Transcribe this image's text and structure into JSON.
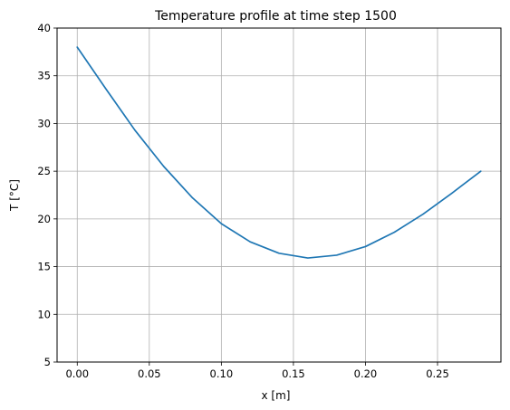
{
  "chart_data": {
    "type": "line",
    "title": "Temperature profile at time step 1500",
    "xlabel": "x [m]",
    "ylabel": "T [°C]",
    "xlim": [
      -0.014,
      0.294
    ],
    "ylim": [
      5,
      40
    ],
    "xticks": [
      0.0,
      0.05,
      0.1,
      0.15,
      0.2,
      0.25
    ],
    "xtick_labels": [
      "0.00",
      "0.05",
      "0.10",
      "0.15",
      "0.20",
      "0.25"
    ],
    "yticks": [
      5,
      10,
      15,
      20,
      25,
      30,
      35,
      40
    ],
    "ytick_labels": [
      "5",
      "10",
      "15",
      "20",
      "25",
      "30",
      "35",
      "40"
    ],
    "grid": true,
    "series": [
      {
        "color": "#1f77b4",
        "x": [
          0.0,
          0.02,
          0.04,
          0.06,
          0.08,
          0.1,
          0.12,
          0.14,
          0.16,
          0.18,
          0.2,
          0.22,
          0.24,
          0.26,
          0.28
        ],
        "y": [
          38.0,
          33.6,
          29.3,
          25.5,
          22.2,
          19.5,
          17.6,
          16.4,
          15.9,
          16.2,
          17.1,
          18.6,
          20.5,
          22.7,
          25.0
        ]
      }
    ]
  }
}
